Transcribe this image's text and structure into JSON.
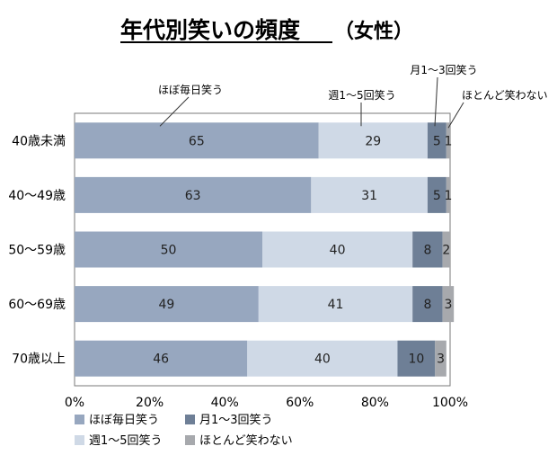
{
  "chart_data": {
    "type": "bar",
    "orientation": "horizontal",
    "stacked": true,
    "title": "年代別笑いの頻度",
    "subtitle": "（女性）",
    "categories": [
      "40歳未満",
      "40～49歳",
      "50～59歳",
      "60～69歳",
      "70歳以上"
    ],
    "series": [
      {
        "name": "ほぼ毎日笑う",
        "color": "#97a7bf",
        "values": [
          65,
          63,
          50,
          49,
          46
        ]
      },
      {
        "name": "週1～5回笑う",
        "color": "#cfd9e6",
        "values": [
          29,
          31,
          40,
          41,
          40
        ]
      },
      {
        "name": "月1～3回笑う",
        "color": "#6e7f96",
        "values": [
          5,
          5,
          8,
          8,
          10
        ]
      },
      {
        "name": "ほとんど笑わない",
        "color": "#a7a9ad",
        "values": [
          1,
          1,
          2,
          3,
          3
        ]
      }
    ],
    "xlim": [
      0,
      100
    ],
    "x_ticks": [
      "0%",
      "20%",
      "40%",
      "60%",
      "80%",
      "100%"
    ],
    "callouts": [
      "ほぼ毎日笑う",
      "週1～5回笑う",
      "月1～3回笑う",
      "ほとんど笑わない"
    ],
    "legend_position": "bottom-left",
    "grid": false
  }
}
